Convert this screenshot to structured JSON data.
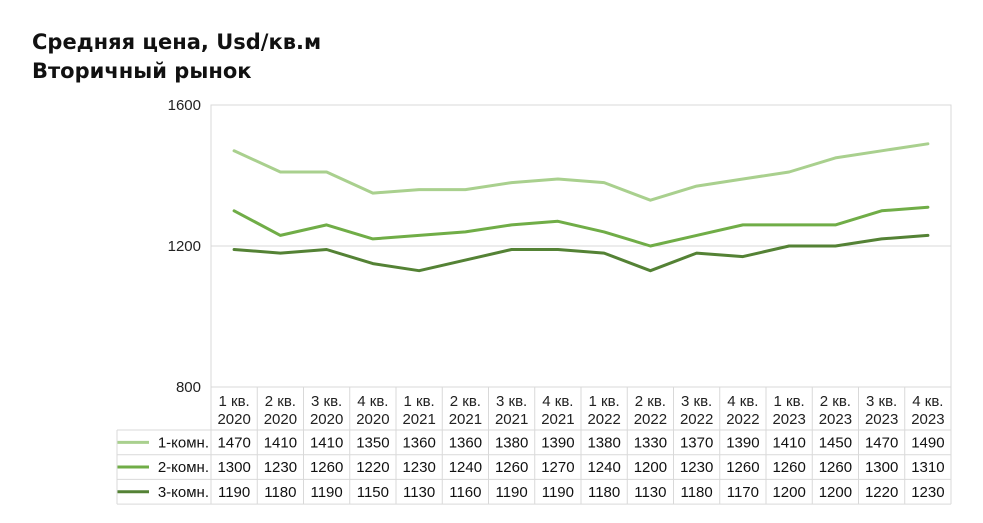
{
  "title": {
    "line1": "Средняя цена, Usd/кв.м",
    "line2": "Вторичный рынок"
  },
  "chart_data": {
    "type": "line",
    "categories": [
      [
        "1 кв.",
        "2020"
      ],
      [
        "2 кв.",
        "2020"
      ],
      [
        "3 кв.",
        "2020"
      ],
      [
        "4 кв.",
        "2020"
      ],
      [
        "1 кв.",
        "2021"
      ],
      [
        "2 кв.",
        "2021"
      ],
      [
        "3 кв.",
        "2021"
      ],
      [
        "4 кв.",
        "2021"
      ],
      [
        "1 кв.",
        "2022"
      ],
      [
        "2 кв.",
        "2022"
      ],
      [
        "3 кв.",
        "2022"
      ],
      [
        "4 кв.",
        "2022"
      ],
      [
        "1 кв.",
        "2023"
      ],
      [
        "2 кв.",
        "2023"
      ],
      [
        "3 кв.",
        "2023"
      ],
      [
        "4 кв.",
        "2023"
      ]
    ],
    "series": [
      {
        "name": "1-комн.",
        "color": "#a9d08e",
        "values": [
          1470,
          1410,
          1410,
          1350,
          1360,
          1360,
          1380,
          1390,
          1380,
          1330,
          1370,
          1390,
          1410,
          1450,
          1470,
          1490
        ]
      },
      {
        "name": "2-комн.",
        "color": "#70ad47",
        "values": [
          1300,
          1230,
          1260,
          1220,
          1230,
          1240,
          1260,
          1270,
          1240,
          1200,
          1230,
          1260,
          1260,
          1260,
          1300,
          1310
        ]
      },
      {
        "name": "3-комн.",
        "color": "#548235",
        "values": [
          1190,
          1180,
          1190,
          1150,
          1130,
          1160,
          1190,
          1190,
          1180,
          1130,
          1180,
          1170,
          1200,
          1200,
          1220,
          1230
        ]
      }
    ],
    "yticks": [
      "1600",
      "1200",
      "800"
    ],
    "ylim": [
      800,
      1600
    ],
    "grid": true,
    "legend": "data-table"
  }
}
